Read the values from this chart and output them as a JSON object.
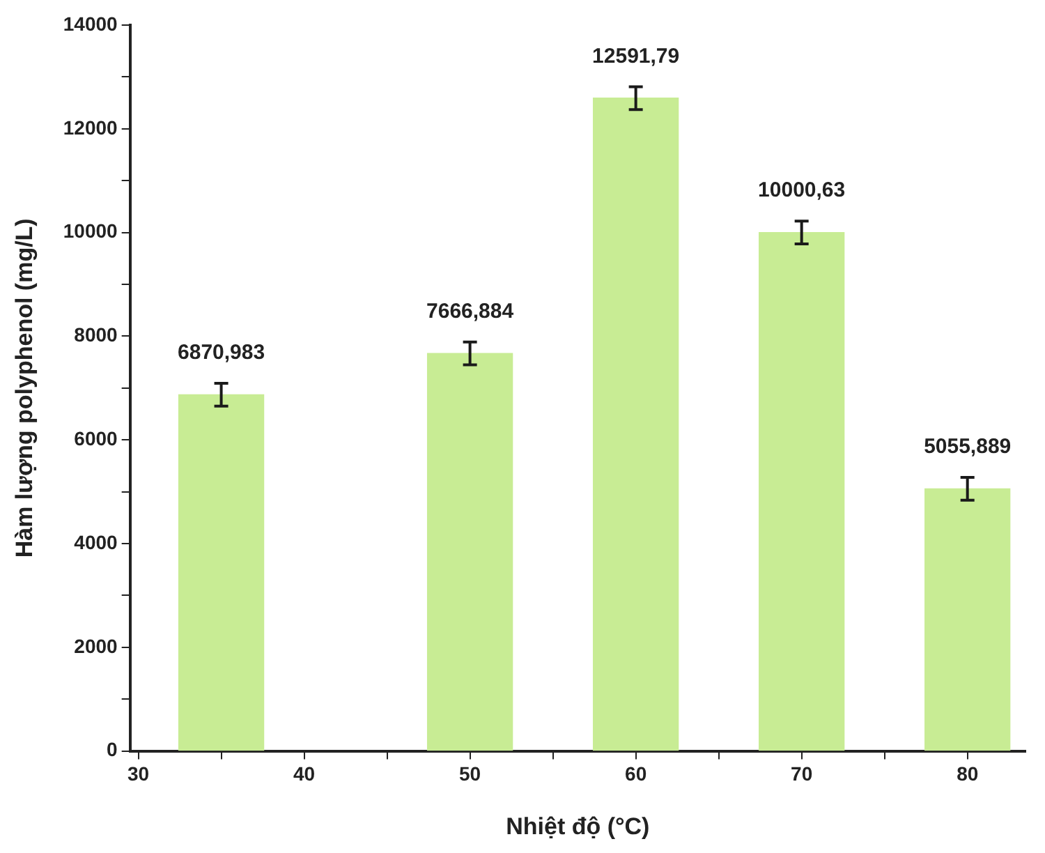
{
  "chart_data": {
    "type": "bar",
    "xlabel": "Nhiệt độ (°C)",
    "ylabel": "Hàm lượng polyphenol (mg/L)",
    "x": [
      35,
      50,
      60,
      70,
      80
    ],
    "values": [
      6870.983,
      7666.884,
      12591.79,
      10000.63,
      5055.889
    ],
    "value_labels": [
      "6870,983",
      "7666,884",
      "12591,79",
      "10000,63",
      "5055,889"
    ],
    "errors": [
      220,
      220,
      220,
      220,
      220
    ],
    "color": "#c8ec94",
    "xlim": [
      29.5,
      83.5
    ],
    "xticks": [
      30,
      {
        "value": 35,
        "label": null
      },
      40,
      {
        "value": 45,
        "label": null
      },
      50,
      {
        "value": 55,
        "label": null
      },
      60,
      {
        "value": 65,
        "label": null
      },
      70,
      {
        "value": 75,
        "label": null
      },
      80
    ],
    "ylim": [
      0,
      14000
    ],
    "yticks": [
      0,
      {
        "value": 1000,
        "label": null
      },
      2000,
      {
        "value": 3000,
        "label": null
      },
      4000,
      {
        "value": 5000,
        "label": null
      },
      6000,
      {
        "value": 7000,
        "label": null
      },
      8000,
      {
        "value": 9000,
        "label": null
      },
      10000,
      {
        "value": 11000,
        "label": null
      },
      12000,
      {
        "value": 13000,
        "label": null
      },
      14000
    ],
    "grid": false,
    "legend": false
  }
}
